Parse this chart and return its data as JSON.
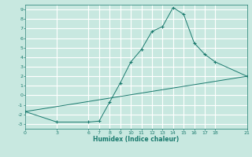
{
  "xlabel": "Humidex (Indice chaleur)",
  "bg_color": "#c8e8e0",
  "grid_color": "#ffffff",
  "line_color": "#1a7a6e",
  "line1_x": [
    0,
    3,
    6,
    7,
    8,
    9,
    10,
    11,
    12,
    13,
    14,
    15,
    16,
    17,
    18,
    21
  ],
  "line1_y": [
    -1.7,
    -2.8,
    -2.8,
    -2.7,
    -0.7,
    1.3,
    3.5,
    4.8,
    6.7,
    7.2,
    9.2,
    8.5,
    5.5,
    4.3,
    3.5,
    2.0
  ],
  "line2_x": [
    0,
    21
  ],
  "line2_y": [
    -1.7,
    2.0
  ],
  "xlim": [
    0,
    21
  ],
  "ylim": [
    -3.5,
    9.5
  ],
  "xticks": [
    0,
    3,
    6,
    7,
    8,
    9,
    10,
    11,
    12,
    13,
    14,
    15,
    16,
    17,
    18,
    21
  ],
  "yticks": [
    -3,
    -2,
    -1,
    0,
    1,
    2,
    3,
    4,
    5,
    6,
    7,
    8,
    9
  ],
  "marker": "+"
}
